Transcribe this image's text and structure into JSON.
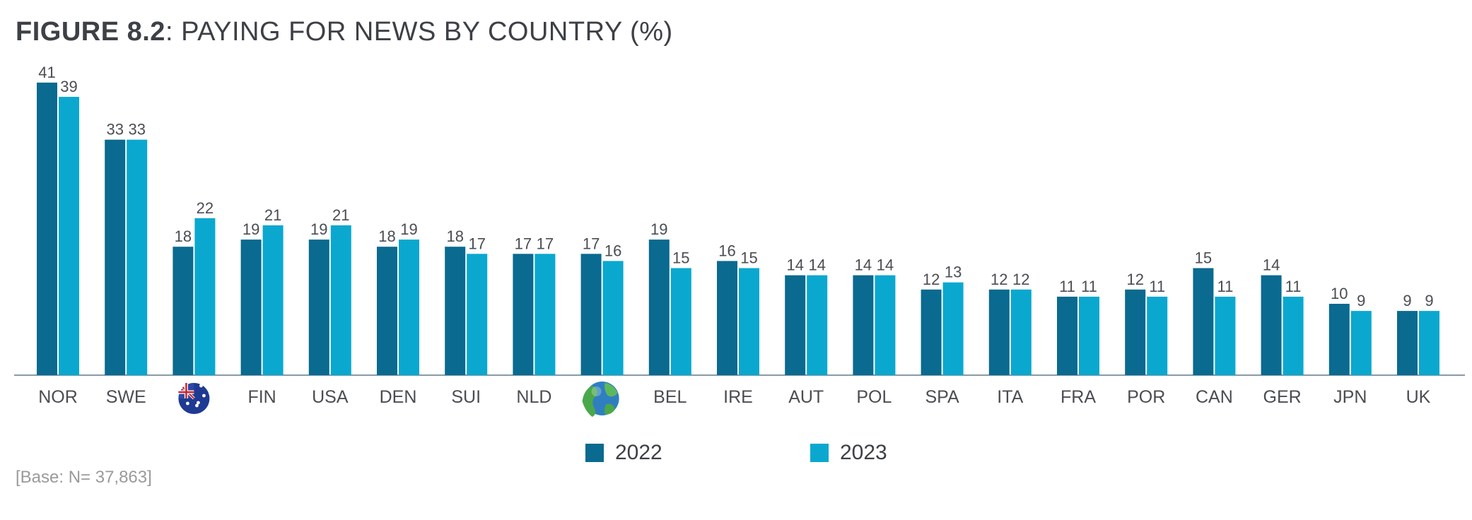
{
  "title": {
    "bold": "FIGURE 8.2",
    "rest": ": PAYING FOR NEWS BY COUNTRY (%)"
  },
  "base_note": "[Base: N= 37,863]",
  "colors": {
    "series_2022": "#0a6a8f",
    "series_2023": "#0aa8cf",
    "axis": "#8a9aa6",
    "text": "#4a4d52"
  },
  "chart_data": {
    "type": "bar",
    "categories": [
      "NOR",
      "SWE",
      "AUS",
      "FIN",
      "USA",
      "DEN",
      "SUI",
      "NLD",
      "GLOBAL",
      "BEL",
      "IRE",
      "AUT",
      "POL",
      "SPA",
      "ITA",
      "FRA",
      "POR",
      "CAN",
      "GER",
      "JPN",
      "UK"
    ],
    "category_icons": {
      "AUS": "australia-flag-icon",
      "GLOBAL": "globe-icon"
    },
    "series": [
      {
        "name": "2022",
        "values": [
          41,
          33,
          18,
          19,
          19,
          18,
          18,
          17,
          17,
          19,
          16,
          14,
          14,
          12,
          12,
          11,
          12,
          15,
          14,
          10,
          9
        ]
      },
      {
        "name": "2023",
        "values": [
          39,
          33,
          22,
          21,
          21,
          19,
          17,
          17,
          16,
          15,
          15,
          14,
          14,
          13,
          12,
          11,
          11,
          11,
          11,
          9,
          9
        ]
      }
    ],
    "ylim": [
      0,
      45
    ],
    "legend_position": "bottom-center",
    "grid": false
  },
  "legend": [
    {
      "label": "2022"
    },
    {
      "label": "2023"
    }
  ]
}
